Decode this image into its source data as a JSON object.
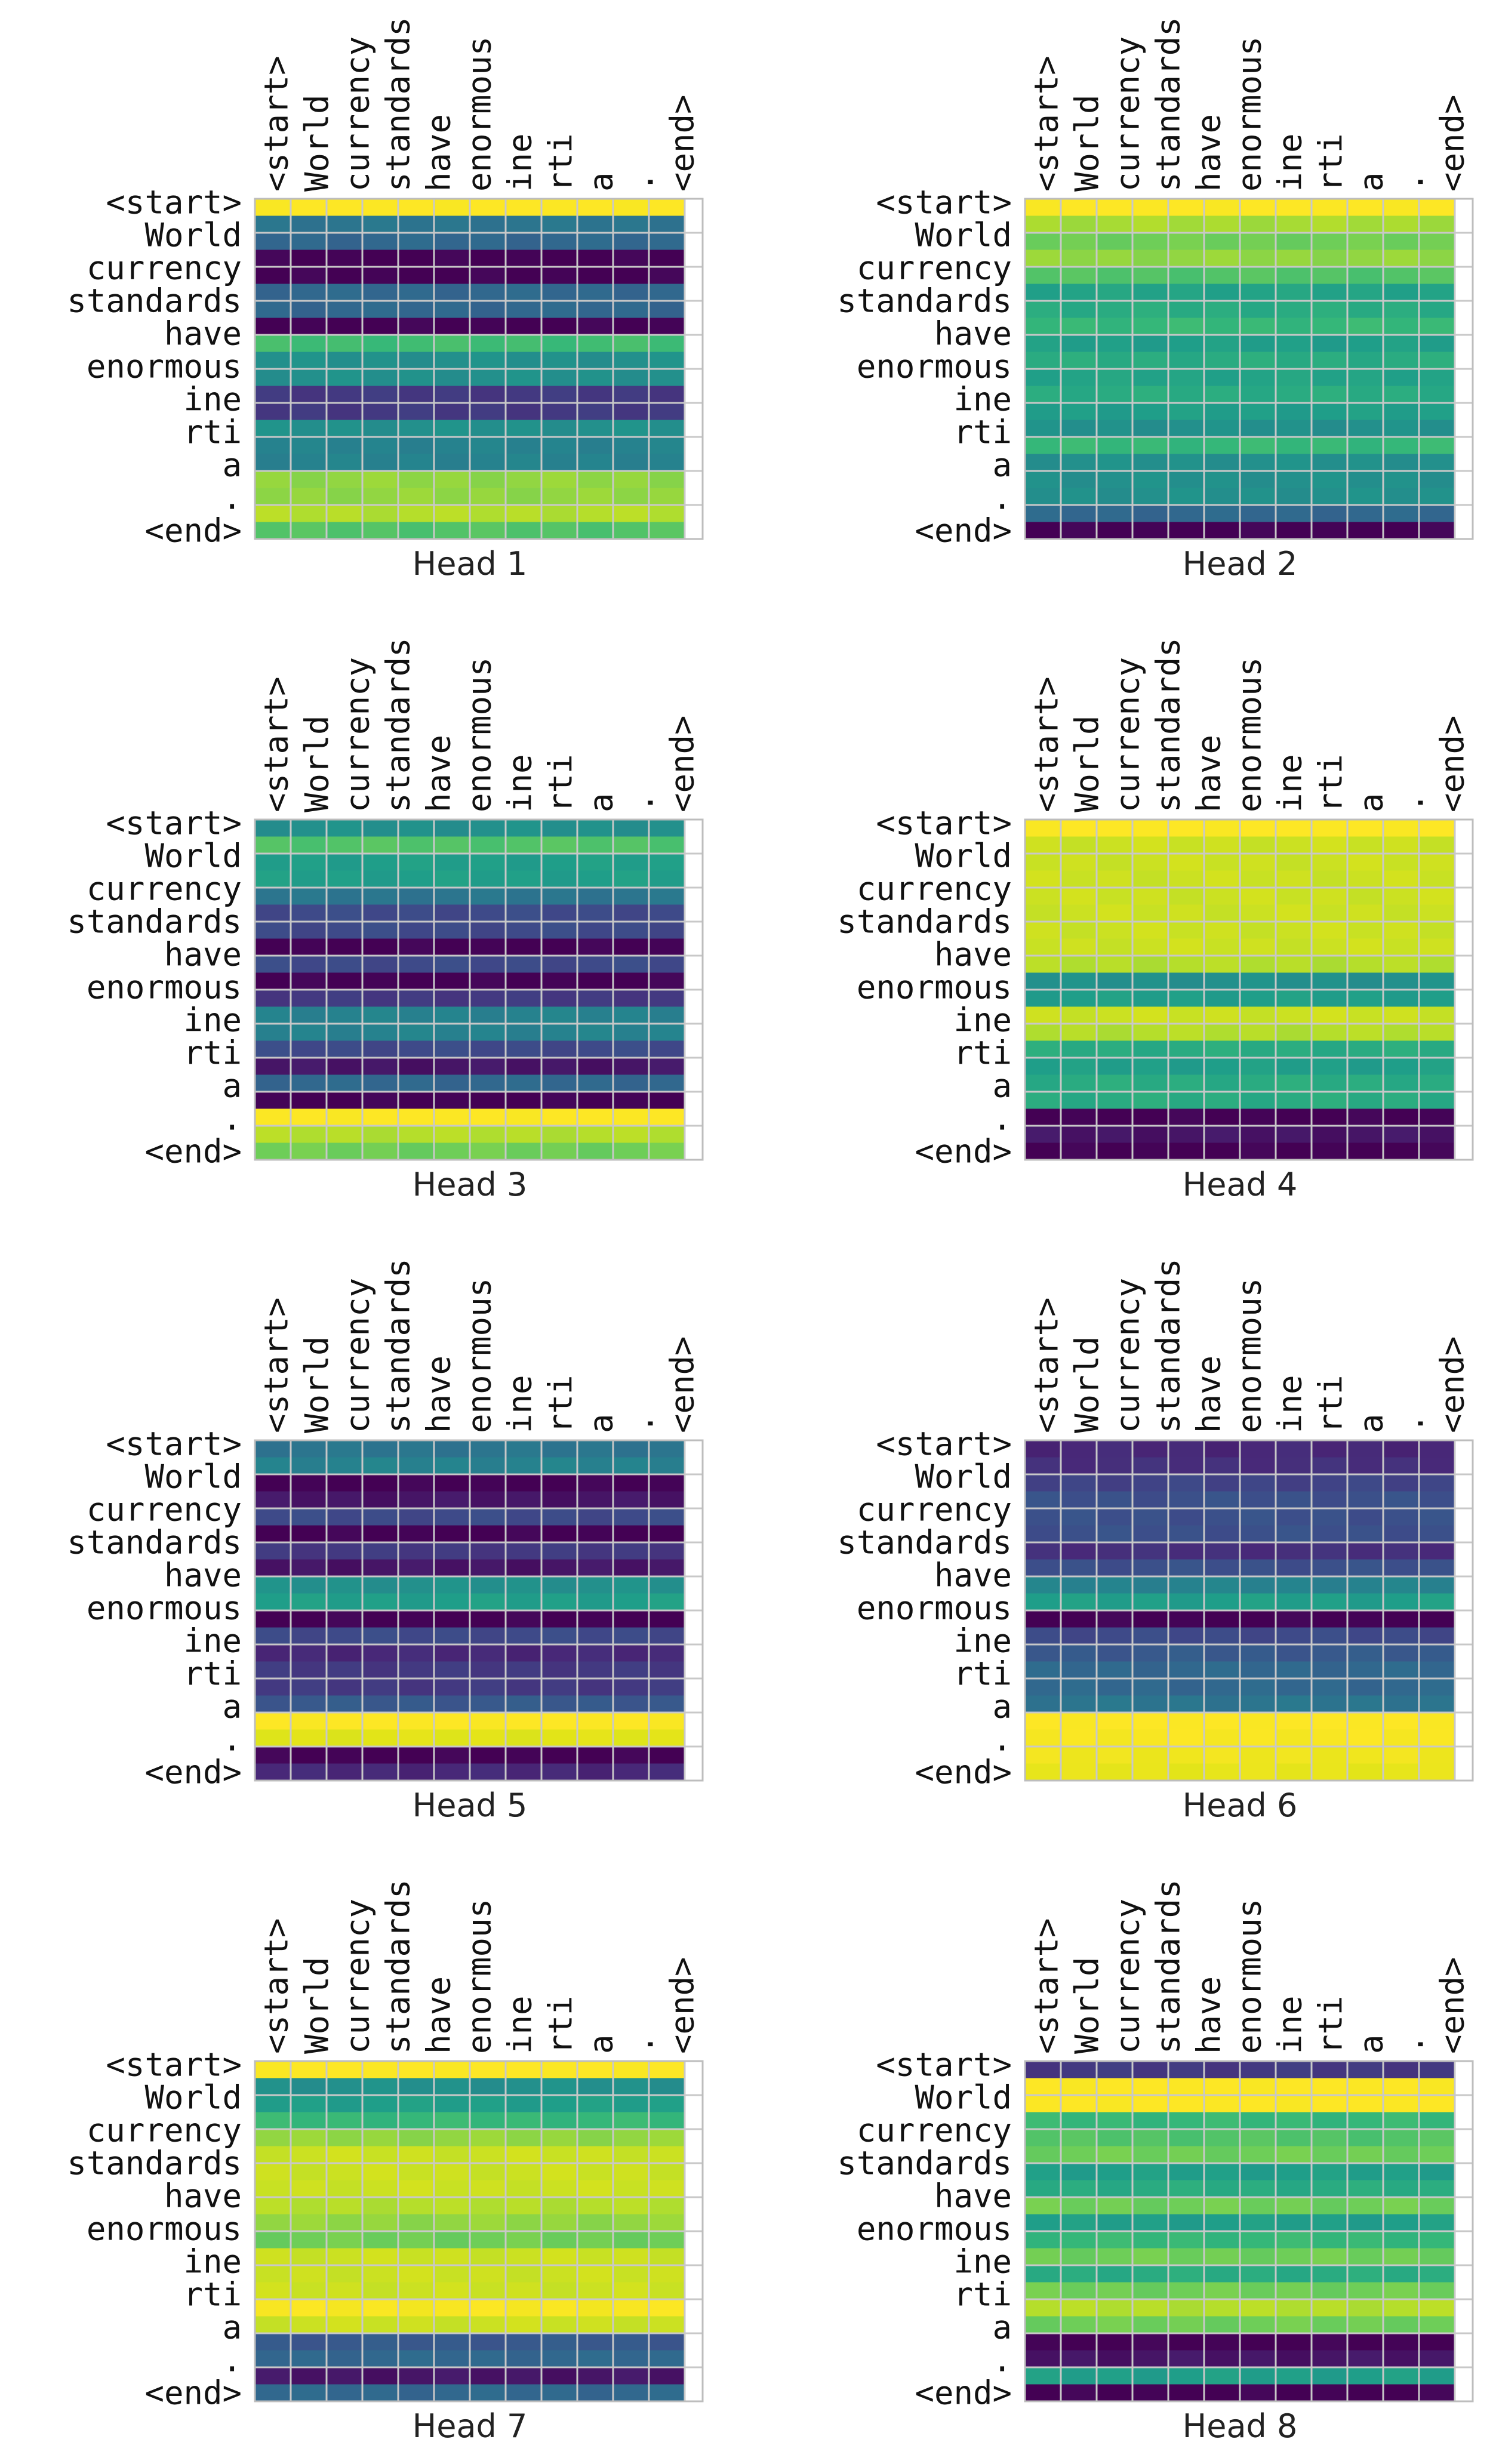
{
  "chart_data": [
    {
      "type": "heatmap",
      "title": "Head 1",
      "x_tick_labels": [
        "<start>",
        "World",
        "currency",
        "standards",
        "have",
        "enormous",
        "ine",
        "rti",
        "a",
        ".",
        "<end>"
      ],
      "y_tick_labels": [
        "<start>",
        "World",
        "currency",
        "standards",
        "have",
        "enormous",
        "ine",
        "rti",
        "a",
        ".",
        "<end>"
      ],
      "colormap": "viridis",
      "grid": true,
      "row_values": [
        1.0,
        0.35,
        0.3,
        0.0,
        0.0,
        0.3,
        0.3,
        0.0,
        0.62,
        0.45,
        0.45,
        0.15,
        0.15,
        0.45,
        0.4,
        0.4,
        0.75,
        0.75,
        0.8,
        0.65
      ],
      "n_rows": 20,
      "n_cols": 12
    },
    {
      "type": "heatmap",
      "title": "Head 2",
      "x_tick_labels": [
        "<start>",
        "World",
        "currency",
        "standards",
        "have",
        "enormous",
        "ine",
        "rti",
        "a",
        ".",
        "<end>"
      ],
      "y_tick_labels": [
        "<start>",
        "World",
        "currency",
        "standards",
        "have",
        "enormous",
        "ine",
        "rti",
        "a",
        ".",
        "<end>"
      ],
      "colormap": "viridis",
      "grid": true,
      "row_values": [
        1.0,
        0.78,
        0.7,
        0.75,
        0.65,
        0.52,
        0.55,
        0.6,
        0.5,
        0.55,
        0.52,
        0.55,
        0.5,
        0.45,
        0.6,
        0.45,
        0.45,
        0.45,
        0.3,
        0.0
      ],
      "n_rows": 20,
      "n_cols": 12
    },
    {
      "type": "heatmap",
      "title": "Head 3",
      "x_tick_labels": [
        "<start>",
        "World",
        "currency",
        "standards",
        "have",
        "enormous",
        "ine",
        "rti",
        "a",
        ".",
        "<end>"
      ],
      "y_tick_labels": [
        "<start>",
        "World",
        "currency",
        "standards",
        "have",
        "enormous",
        "ine",
        "rti",
        "a",
        ".",
        "<end>"
      ],
      "colormap": "viridis",
      "grid": true,
      "row_values": [
        0.45,
        0.65,
        0.5,
        0.5,
        0.35,
        0.2,
        0.2,
        0.0,
        0.2,
        0.0,
        0.15,
        0.4,
        0.4,
        0.2,
        0.05,
        0.3,
        0.0,
        1.0,
        0.8,
        0.7
      ],
      "n_rows": 20,
      "n_cols": 12
    },
    {
      "type": "heatmap",
      "title": "Head 4",
      "x_tick_labels": [
        "<start>",
        "World",
        "currency",
        "standards",
        "have",
        "enormous",
        "ine",
        "rti",
        "a",
        ".",
        "<end>"
      ],
      "y_tick_labels": [
        "<start>",
        "World",
        "currency",
        "standards",
        "have",
        "enormous",
        "ine",
        "rti",
        "a",
        ".",
        "<end>"
      ],
      "colormap": "viridis",
      "grid": true,
      "row_values": [
        1.0,
        0.85,
        0.85,
        0.85,
        0.85,
        0.85,
        0.85,
        0.85,
        0.8,
        0.45,
        0.5,
        0.85,
        0.8,
        0.55,
        0.5,
        0.55,
        0.55,
        0.0,
        0.05,
        0.0
      ],
      "n_rows": 20,
      "n_cols": 12
    },
    {
      "type": "heatmap",
      "title": "Head 5",
      "x_tick_labels": [
        "<start>",
        "World",
        "currency",
        "standards",
        "have",
        "enormous",
        "ine",
        "rti",
        "a",
        ".",
        "<end>"
      ],
      "y_tick_labels": [
        "<start>",
        "World",
        "currency",
        "standards",
        "have",
        "enormous",
        "ine",
        "rti",
        "a",
        ".",
        "<end>"
      ],
      "colormap": "viridis",
      "grid": true,
      "row_values": [
        0.35,
        0.4,
        0.0,
        0.05,
        0.2,
        0.0,
        0.15,
        0.05,
        0.45,
        0.5,
        0.0,
        0.2,
        0.1,
        0.15,
        0.15,
        0.25,
        1.0,
        0.9,
        0.0,
        0.1
      ],
      "n_rows": 20,
      "n_cols": 12
    },
    {
      "type": "heatmap",
      "title": "Head 6",
      "x_tick_labels": [
        "<start>",
        "World",
        "currency",
        "standards",
        "have",
        "enormous",
        "ine",
        "rti",
        "a",
        ".",
        "<end>"
      ],
      "y_tick_labels": [
        "<start>",
        "World",
        "currency",
        "standards",
        "have",
        "enormous",
        "ine",
        "rti",
        "a",
        ".",
        "<end>"
      ],
      "colormap": "viridis",
      "grid": true,
      "row_values": [
        0.1,
        0.12,
        0.18,
        0.22,
        0.22,
        0.22,
        0.12,
        0.22,
        0.4,
        0.5,
        0.0,
        0.2,
        0.25,
        0.3,
        0.3,
        0.35,
        1.0,
        0.98,
        0.95,
        0.92
      ],
      "n_rows": 20,
      "n_cols": 12
    },
    {
      "type": "heatmap",
      "title": "Head 7",
      "x_tick_labels": [
        "<start>",
        "World",
        "currency",
        "standards",
        "have",
        "enormous",
        "ine",
        "rti",
        "a",
        ".",
        "<end>"
      ],
      "y_tick_labels": [
        "<start>",
        "World",
        "currency",
        "standards",
        "have",
        "enormous",
        "ine",
        "rti",
        "a",
        ".",
        "<end>"
      ],
      "colormap": "viridis",
      "grid": true,
      "row_values": [
        1.0,
        0.45,
        0.5,
        0.6,
        0.75,
        0.85,
        0.85,
        0.85,
        0.8,
        0.75,
        0.7,
        0.85,
        0.85,
        0.85,
        0.98,
        0.85,
        0.25,
        0.3,
        0.05,
        0.3
      ],
      "n_rows": 20,
      "n_cols": 12
    },
    {
      "type": "heatmap",
      "title": "Head 8",
      "x_tick_labels": [
        "<start>",
        "World",
        "currency",
        "standards",
        "have",
        "enormous",
        "ine",
        "rti",
        "a",
        ".",
        "<end>"
      ],
      "y_tick_labels": [
        "<start>",
        "World",
        "currency",
        "standards",
        "have",
        "enormous",
        "ine",
        "rti",
        "a",
        ".",
        "<end>"
      ],
      "colormap": "viridis",
      "grid": true,
      "row_values": [
        0.15,
        1.0,
        1.0,
        0.6,
        0.65,
        0.7,
        0.5,
        0.55,
        0.7,
        0.5,
        0.6,
        0.7,
        0.55,
        0.7,
        0.8,
        0.7,
        0.0,
        0.05,
        0.5,
        0.0
      ],
      "n_rows": 20,
      "n_cols": 12
    }
  ]
}
